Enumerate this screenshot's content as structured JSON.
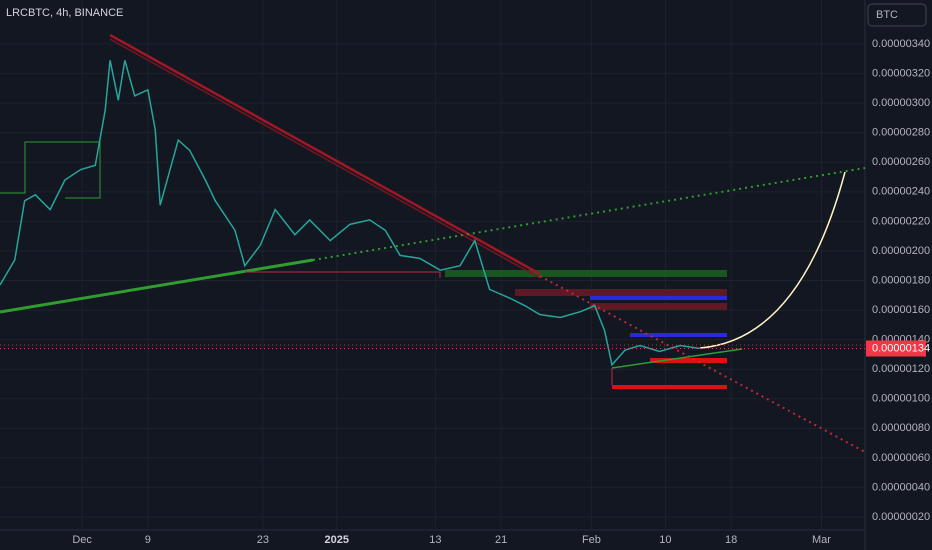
{
  "header": {
    "symbol": "LRCBTC, 4h, BINANCE",
    "currency_button": "BTC"
  },
  "chart_data": {
    "type": "line",
    "color": "#26a69a",
    "x": [
      -10,
      -8.2,
      -7,
      -5.7,
      -3.9,
      -2.1,
      -0.2,
      1.6,
      2.8,
      3.4,
      4.4,
      5.2,
      6.4,
      8,
      8.9,
      9.5,
      10.5,
      11.7,
      13.1,
      15,
      16.2,
      18.6,
      19.8,
      21.7,
      23.5,
      25.9,
      27.7,
      30.2,
      32.6,
      35,
      36.9,
      38.7,
      41.1,
      43.6,
      46,
      47.8,
      49.6,
      52.1,
      53.9,
      55.7,
      58.2,
      60.7,
      62.4,
      63.6,
      64.5,
      66.1,
      67.9,
      70.3,
      72.8,
      75.2
    ],
    "values": [
      1.77e-06,
      1.94e-06,
      2.34e-06,
      2.38e-06,
      2.28e-06,
      2.48e-06,
      2.55e-06,
      2.58e-06,
      2.95e-06,
      3.29e-06,
      3.02e-06,
      3.29e-06,
      3.05e-06,
      3.09e-06,
      2.82e-06,
      2.31e-06,
      2.51e-06,
      2.75e-06,
      2.68e-06,
      2.48e-06,
      2.34e-06,
      2.14e-06,
      1.9e-06,
      2.04e-06,
      2.28e-06,
      2.11e-06,
      2.21e-06,
      2.07e-06,
      2.18e-06,
      2.21e-06,
      2.14e-06,
      1.97e-06,
      1.95e-06,
      1.87e-06,
      1.9e-06,
      2.07e-06,
      1.74e-06,
      1.68e-06,
      1.63e-06,
      1.57e-06,
      1.55e-06,
      1.59e-06,
      1.63e-06,
      1.46e-06,
      1.23e-06,
      1.33e-06,
      1.36e-06,
      1.32e-06,
      1.36e-06,
      1.34e-06
    ],
    "xlim": [
      -10,
      95.3
    ],
    "xticks": [
      {
        "value": 0,
        "label": "Dec"
      },
      {
        "value": 8,
        "label": "9"
      },
      {
        "value": 22,
        "label": "23"
      },
      {
        "value": 31,
        "label": "2025"
      },
      {
        "value": 43,
        "label": "13"
      },
      {
        "value": 51,
        "label": "21"
      },
      {
        "value": 62,
        "label": "Feb"
      },
      {
        "value": 71,
        "label": "10"
      },
      {
        "value": 79,
        "label": "18"
      },
      {
        "value": 90,
        "label": "Mar"
      }
    ],
    "ylim": [
      1.12e-07,
      3.698e-06
    ],
    "yticks": [
      {
        "value": 2e-07,
        "label": "0.00000020"
      },
      {
        "value": 4e-07,
        "label": "0.00000040"
      },
      {
        "value": 6e-07,
        "label": "0.00000060"
      },
      {
        "value": 8e-07,
        "label": "0.00000080"
      },
      {
        "value": 1e-06,
        "label": "0.00000100"
      },
      {
        "value": 1.2e-06,
        "label": "0.00000120"
      },
      {
        "value": 1.4e-06,
        "label": "0.00000140"
      },
      {
        "value": 1.6e-06,
        "label": "0.00000160"
      },
      {
        "value": 1.8e-06,
        "label": "0.00000180"
      },
      {
        "value": 2e-06,
        "label": "0.00000200"
      },
      {
        "value": 2.2e-06,
        "label": "0.00000220"
      },
      {
        "value": 2.4e-06,
        "label": "0.00000240"
      },
      {
        "value": 2.6e-06,
        "label": "0.00000260"
      },
      {
        "value": 2.8e-06,
        "label": "0.00000280"
      },
      {
        "value": 3e-06,
        "label": "0.00000300"
      },
      {
        "value": 3.2e-06,
        "label": "0.00000320"
      },
      {
        "value": 3.4e-06,
        "label": "0.00000340"
      }
    ],
    "last_price": {
      "value": 1.34e-06,
      "label": "0.00000134"
    },
    "last_price_color": "#f23645"
  }
}
